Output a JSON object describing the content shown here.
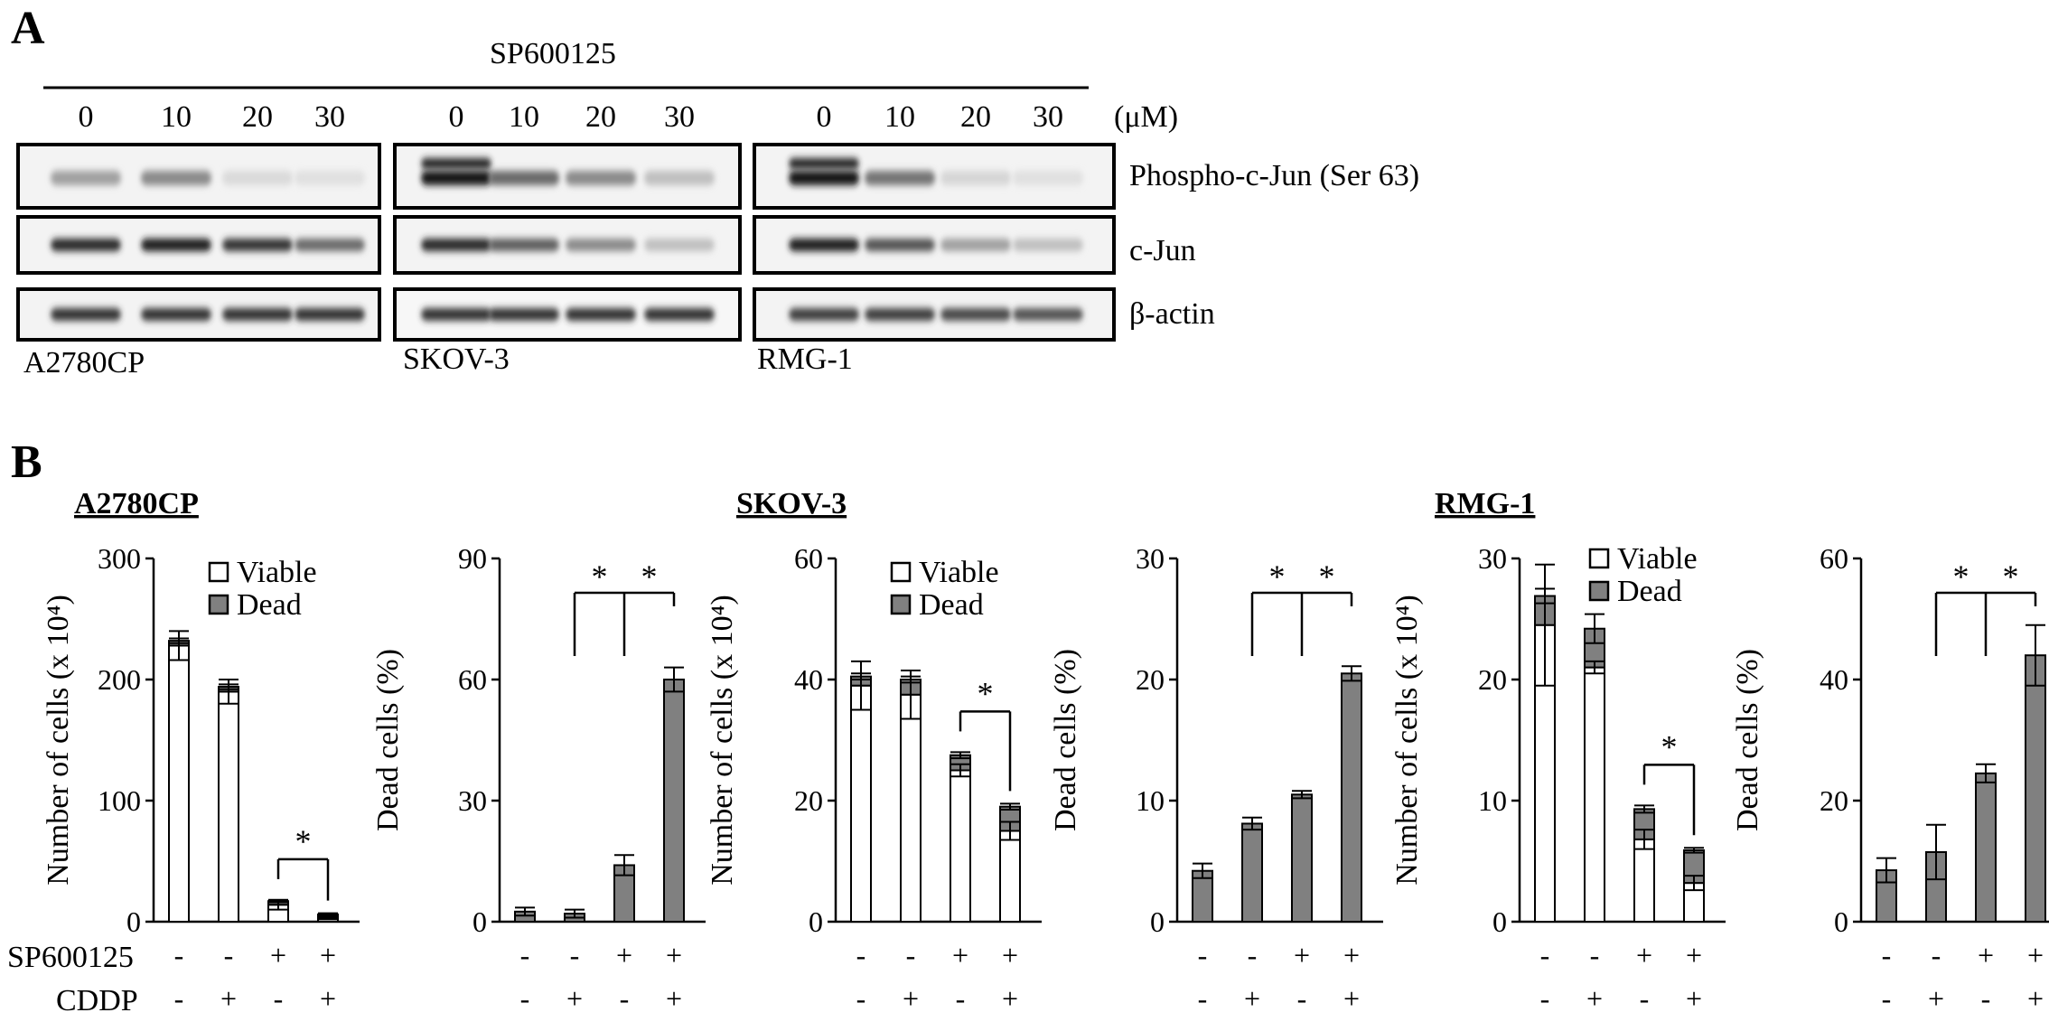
{
  "panel_a": {
    "letter": "A",
    "treatment": "SP600125",
    "unit": "(μM)",
    "doses": [
      "0",
      "10",
      "20",
      "30"
    ],
    "rows": [
      "Phospho-c-Jun (Ser 63)",
      "c-Jun",
      "β-actin"
    ],
    "cell_lines": [
      "A2780CP",
      "SKOV-3",
      "RMG-1"
    ],
    "band_intensity": {
      "A2780CP": [
        [
          0.35,
          0.45,
          0.08,
          0.05
        ],
        [
          0.9,
          0.95,
          0.85,
          0.6
        ],
        [
          0.85,
          0.85,
          0.85,
          0.85
        ]
      ],
      "SKOV-3": [
        [
          1.0,
          0.6,
          0.45,
          0.2
        ],
        [
          0.9,
          0.65,
          0.45,
          0.2
        ],
        [
          0.85,
          0.85,
          0.85,
          0.85
        ]
      ],
      "RMG-1": [
        [
          1.0,
          0.55,
          0.1,
          0.05
        ],
        [
          0.95,
          0.7,
          0.35,
          0.2
        ],
        [
          0.8,
          0.8,
          0.75,
          0.7
        ]
      ]
    }
  },
  "panel_b": {
    "letter": "B",
    "row_labels": [
      "SP600125",
      "CDDP"
    ],
    "sp_signs": [
      "-",
      "-",
      "+",
      "+"
    ],
    "cddp_signs": [
      "-",
      "+",
      "-",
      "+"
    ],
    "legend": [
      "Viable",
      "Dead"
    ],
    "colors": {
      "viable": "#ffffff",
      "dead": "#808080",
      "stroke": "#000000"
    },
    "star": "*"
  },
  "chart_data": [
    {
      "type": "bar",
      "stacked": true,
      "cell_line": "A2780CP",
      "ylabel": "Number of cells (x 10⁴)",
      "ylim": [
        0,
        300
      ],
      "yticks": [
        0,
        100,
        200,
        300
      ],
      "series": [
        {
          "name": "Viable",
          "values": [
            228,
            190,
            14,
            3
          ],
          "errors": [
            12,
            10,
            4,
            1
          ]
        },
        {
          "name": "Dead",
          "values": [
            4,
            4,
            3,
            3
          ],
          "errors": [
            2,
            2,
            1,
            1
          ]
        }
      ],
      "significance": [
        {
          "pair": [
            2,
            3
          ],
          "label": "*"
        }
      ]
    },
    {
      "type": "bar",
      "cell_line": "A2780CP",
      "ylabel": "Dead cells (%)",
      "ylim": [
        0,
        90
      ],
      "yticks": [
        0,
        30,
        60,
        90
      ],
      "values": [
        2.5,
        2,
        14,
        60
      ],
      "errors": [
        1,
        1,
        2.5,
        3
      ],
      "significance": [
        {
          "pair": [
            1,
            3
          ],
          "label": "*"
        },
        {
          "pair": [
            2,
            3
          ],
          "label": "*"
        }
      ]
    },
    {
      "type": "bar",
      "stacked": true,
      "cell_line": "SKOV-3",
      "ylabel": "Number of cells (x 10⁴)",
      "ylim": [
        0,
        60
      ],
      "yticks": [
        0,
        20,
        40,
        60
      ],
      "series": [
        {
          "name": "Viable",
          "values": [
            39,
            37.5,
            25,
            15
          ],
          "errors": [
            4,
            4,
            1,
            1.5
          ]
        },
        {
          "name": "Dead",
          "values": [
            1.5,
            2.5,
            2.5,
            4
          ],
          "errors": [
            0.5,
            0.5,
            0.5,
            0.5
          ]
        }
      ],
      "significance": [
        {
          "pair": [
            2,
            3
          ],
          "label": "*"
        }
      ]
    },
    {
      "type": "bar",
      "cell_line": "SKOV-3",
      "ylabel": "Dead cells (%)",
      "ylim": [
        0,
        30
      ],
      "yticks": [
        0,
        10,
        20,
        30
      ],
      "values": [
        4.2,
        8.1,
        10.5,
        20.5
      ],
      "errors": [
        0.6,
        0.5,
        0.3,
        0.6
      ],
      "significance": [
        {
          "pair": [
            1,
            3
          ],
          "label": "*"
        },
        {
          "pair": [
            2,
            3
          ],
          "label": "*"
        }
      ]
    },
    {
      "type": "bar",
      "stacked": true,
      "cell_line": "RMG-1",
      "ylabel": "Number of cells (x 10⁴)",
      "ylim": [
        0,
        30
      ],
      "yticks": [
        0,
        10,
        20,
        30
      ],
      "series": [
        {
          "name": "Viable",
          "values": [
            24.5,
            21,
            6.8,
            3.2
          ],
          "errors": [
            5,
            0.5,
            0.8,
            0.6
          ]
        },
        {
          "name": "Dead",
          "values": [
            2.4,
            3.2,
            2.5,
            2.7
          ],
          "errors": [
            0.6,
            1.2,
            0.3,
            0.2
          ]
        }
      ],
      "significance": [
        {
          "pair": [
            2,
            3
          ],
          "label": "*"
        }
      ]
    },
    {
      "type": "bar",
      "cell_line": "RMG-1",
      "ylabel": "Dead cells (%)",
      "ylim": [
        0,
        60
      ],
      "yticks": [
        0,
        20,
        40,
        60
      ],
      "values": [
        8.5,
        11.5,
        24.5,
        44
      ],
      "errors": [
        2,
        4.5,
        1.5,
        5
      ],
      "significance": [
        {
          "pair": [
            1,
            3
          ],
          "label": "*"
        },
        {
          "pair": [
            2,
            3
          ],
          "label": "*"
        }
      ]
    }
  ]
}
